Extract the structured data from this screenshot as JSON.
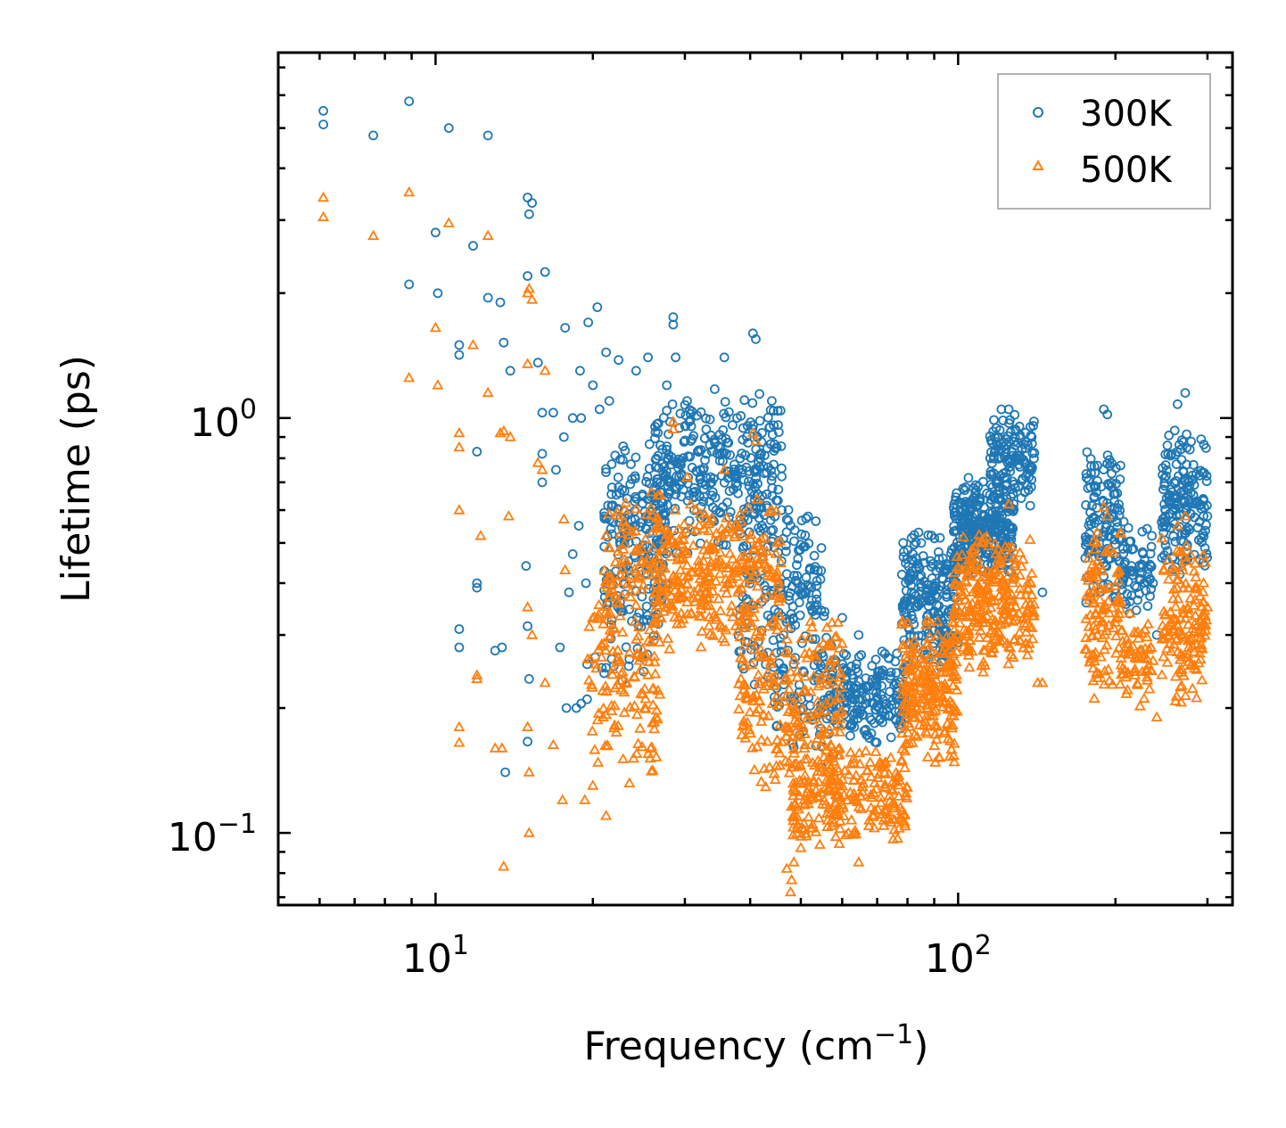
{
  "chart_data": {
    "type": "scatter",
    "xscale": "log",
    "yscale": "log",
    "xlim": [
      5.0,
      335
    ],
    "ylim": [
      0.067,
      7.6
    ],
    "xlabel": "Frequency (cm",
    "xlabel_sup": "−1",
    "xlabel_end": ")",
    "ylabel": "Lifetime (ps)",
    "x_ticks": [
      {
        "value": 10,
        "base": "10",
        "exp": "1"
      },
      {
        "value": 100,
        "base": "10",
        "exp": "2"
      }
    ],
    "y_ticks": [
      {
        "value": 0.1,
        "base": "10",
        "exp": "−1"
      },
      {
        "value": 1,
        "base": "10",
        "exp": "0"
      }
    ],
    "legend_position": "top-right",
    "series": [
      {
        "name": "300K",
        "marker": "circle",
        "color": "#1f77b4",
        "points": [
          [
            6.1,
            5.5
          ],
          [
            6.1,
            5.1
          ],
          [
            7.6,
            4.8
          ],
          [
            8.9,
            5.8
          ],
          [
            10.6,
            5.0
          ],
          [
            12.6,
            4.8
          ],
          [
            15.0,
            3.4
          ],
          [
            15.3,
            3.3
          ],
          [
            15.1,
            3.1
          ],
          [
            10.0,
            2.8
          ],
          [
            11.8,
            2.6
          ],
          [
            8.9,
            2.1
          ],
          [
            10.1,
            2.0
          ],
          [
            12.6,
            1.95
          ],
          [
            15.0,
            2.2
          ],
          [
            16.2,
            2.25
          ],
          [
            13.3,
            1.9
          ],
          [
            11.1,
            1.5
          ],
          [
            11.1,
            1.42
          ],
          [
            13.5,
            1.52
          ],
          [
            15.7,
            1.36
          ],
          [
            13.9,
            1.3
          ],
          [
            17.7,
            1.65
          ],
          [
            18.9,
            1.3
          ],
          [
            20.4,
            1.85
          ],
          [
            19.6,
            1.7
          ],
          [
            21.2,
            1.44
          ],
          [
            22.4,
            1.38
          ],
          [
            20.0,
            1.2
          ],
          [
            21.5,
            1.1
          ],
          [
            20.6,
            1.05
          ],
          [
            16.0,
            1.03
          ],
          [
            16.8,
            1.03
          ],
          [
            12.0,
            0.83
          ],
          [
            18.3,
            1.0
          ],
          [
            19.0,
            1.0
          ],
          [
            17.6,
            0.9
          ],
          [
            16.0,
            0.7
          ],
          [
            17.0,
            0.75
          ],
          [
            16.0,
            0.82
          ],
          [
            18.3,
            0.47
          ],
          [
            18.8,
            0.55
          ],
          [
            18.0,
            0.38
          ],
          [
            19.4,
            0.4
          ],
          [
            14.9,
            0.44
          ],
          [
            12.0,
            0.4
          ],
          [
            12.0,
            0.39
          ],
          [
            11.1,
            0.31
          ],
          [
            11.1,
            0.28
          ],
          [
            13.0,
            0.275
          ],
          [
            13.4,
            0.28
          ],
          [
            15.0,
            0.315
          ],
          [
            15.1,
            0.235
          ],
          [
            15.0,
            0.166
          ],
          [
            13.6,
            0.14
          ],
          [
            17.3,
            0.28
          ],
          [
            17.8,
            0.2
          ],
          [
            18.6,
            0.2
          ],
          [
            19.0,
            0.205
          ],
          [
            19.5,
            0.21
          ],
          [
            20.2,
            0.265
          ],
          [
            19.5,
            0.255
          ],
          [
            20.8,
            0.25
          ],
          [
            21.2,
            0.25
          ],
          [
            28.5,
            1.75
          ],
          [
            28.5,
            1.68
          ],
          [
            28.8,
            1.4
          ],
          [
            35.7,
            1.4
          ],
          [
            40.5,
            1.6
          ],
          [
            41.0,
            1.55
          ],
          [
            30.3,
            1.1
          ],
          [
            44.0,
            1.1
          ],
          [
            27.7,
            1.2
          ],
          [
            25.5,
            1.4
          ],
          [
            24.2,
            1.3
          ],
          [
            45.0,
            0.85
          ],
          [
            46.0,
            0.6
          ],
          [
            47.8,
            0.55
          ],
          [
            49.5,
            0.48
          ],
          [
            52.0,
            0.43
          ],
          [
            60.0,
            0.33
          ],
          [
            64.5,
            0.3
          ],
          [
            84.0,
            0.53
          ],
          [
            85.0,
            0.5
          ],
          [
            121.0,
            1.05
          ],
          [
            125.0,
            1.05
          ],
          [
            145.0,
            0.38
          ],
          [
            190.0,
            1.05
          ],
          [
            193.0,
            1.02
          ],
          [
            272.0,
            1.15
          ],
          [
            263.0,
            1.08
          ],
          [
            236.0,
            0.4
          ],
          [
            240.0,
            0.3
          ],
          [
            295.0,
            0.58
          ],
          [
            300.0,
            0.58
          ]
        ],
        "clusters": [
          {
            "x": [
              21,
              28
            ],
            "y": [
              0.3,
              1.05
            ],
            "n": 160
          },
          {
            "x": [
              26,
              46
            ],
            "y": [
              0.45,
              1.2
            ],
            "n": 330
          },
          {
            "x": [
              21,
              27
            ],
            "y": [
              0.22,
              0.6
            ],
            "n": 60
          },
          {
            "x": [
              38,
              56
            ],
            "y": [
              0.22,
              0.65
            ],
            "n": 170
          },
          {
            "x": [
              44,
              58
            ],
            "y": [
              0.14,
              0.3
            ],
            "n": 60
          },
          {
            "x": [
              55,
              80
            ],
            "y": [
              0.16,
              0.28
            ],
            "n": 200
          },
          {
            "x": [
              78,
              100
            ],
            "y": [
              0.24,
              0.55
            ],
            "n": 220
          },
          {
            "x": [
              98,
              128
            ],
            "y": [
              0.4,
              0.75
            ],
            "n": 300
          },
          {
            "x": [
              115,
              140
            ],
            "y": [
              0.6,
              1.05
            ],
            "n": 130
          },
          {
            "x": [
              175,
              205
            ],
            "y": [
              0.32,
              0.95
            ],
            "n": 130
          },
          {
            "x": [
              205,
              235
            ],
            "y": [
              0.32,
              0.58
            ],
            "n": 70
          },
          {
            "x": [
              245,
              300
            ],
            "y": [
              0.4,
              0.95
            ],
            "n": 170
          }
        ]
      },
      {
        "name": "500K",
        "marker": "triangle",
        "color": "#ff7f0e",
        "points": [
          [
            6.1,
            3.4
          ],
          [
            6.1,
            3.05
          ],
          [
            7.6,
            2.75
          ],
          [
            8.9,
            3.5
          ],
          [
            10.6,
            2.95
          ],
          [
            12.6,
            2.75
          ],
          [
            15.0,
            2.0
          ],
          [
            15.3,
            1.93
          ],
          [
            15.1,
            2.05
          ],
          [
            10.0,
            1.65
          ],
          [
            11.8,
            1.5
          ],
          [
            8.9,
            1.25
          ],
          [
            10.1,
            1.2
          ],
          [
            12.6,
            1.15
          ],
          [
            15.0,
            1.35
          ],
          [
            16.2,
            1.3
          ],
          [
            13.3,
            0.92
          ],
          [
            11.1,
            0.92
          ],
          [
            11.1,
            0.85
          ],
          [
            13.5,
            0.93
          ],
          [
            13.9,
            0.9
          ],
          [
            15.7,
            0.78
          ],
          [
            16.0,
            0.75
          ],
          [
            12.2,
            0.52
          ],
          [
            13.8,
            0.58
          ],
          [
            17.6,
            0.57
          ],
          [
            17.7,
            0.43
          ],
          [
            15.0,
            0.35
          ],
          [
            15.3,
            0.3
          ],
          [
            16.2,
            0.23
          ],
          [
            11.1,
            0.18
          ],
          [
            11.1,
            0.165
          ],
          [
            13.0,
            0.16
          ],
          [
            13.4,
            0.16
          ],
          [
            15.0,
            0.18
          ],
          [
            15.1,
            0.14
          ],
          [
            16.8,
            0.163
          ],
          [
            17.5,
            0.12
          ],
          [
            12.0,
            0.24
          ],
          [
            12.0,
            0.235
          ],
          [
            15.1,
            0.1
          ],
          [
            13.5,
            0.083
          ],
          [
            11.1,
            0.6
          ],
          [
            19.3,
            0.12
          ],
          [
            20.0,
            0.13
          ],
          [
            21.2,
            0.11
          ],
          [
            28.5,
            0.98
          ],
          [
            28.5,
            0.94
          ],
          [
            40.5,
            0.92
          ],
          [
            41.0,
            0.88
          ],
          [
            30.3,
            0.72
          ],
          [
            44.0,
            0.6
          ],
          [
            45.0,
            0.5
          ],
          [
            35.7,
            0.75
          ],
          [
            47.8,
            0.072
          ],
          [
            48.0,
            0.077
          ],
          [
            47.0,
            0.082
          ],
          [
            48.5,
            0.085
          ],
          [
            50.0,
            0.092
          ],
          [
            64.5,
            0.085
          ],
          [
            125.0,
            0.62
          ],
          [
            145.0,
            0.23
          ],
          [
            142.0,
            0.23
          ],
          [
            190.0,
            0.61
          ],
          [
            193.0,
            0.58
          ],
          [
            272.0,
            0.58
          ],
          [
            263.0,
            0.55
          ],
          [
            236.0,
            0.26
          ],
          [
            240.0,
            0.19
          ],
          [
            295.0,
            0.36
          ],
          [
            300.0,
            0.35
          ]
        ],
        "clusters": [
          {
            "x": [
              19.5,
              27
            ],
            "y": [
              0.13,
              0.45
            ],
            "n": 140
          },
          {
            "x": [
              21,
              27
            ],
            "y": [
              0.3,
              0.75
            ],
            "n": 80
          },
          {
            "x": [
              26,
              46
            ],
            "y": [
              0.26,
              0.65
            ],
            "n": 320
          },
          {
            "x": [
              38,
              60
            ],
            "y": [
              0.12,
              0.35
            ],
            "n": 220
          },
          {
            "x": [
              48,
              80
            ],
            "y": [
              0.09,
              0.17
            ],
            "n": 260
          },
          {
            "x": [
              78,
              100
            ],
            "y": [
              0.14,
              0.35
            ],
            "n": 220
          },
          {
            "x": [
              98,
              140
            ],
            "y": [
              0.23,
              0.55
            ],
            "n": 280
          },
          {
            "x": [
              175,
              205
            ],
            "y": [
              0.2,
              0.58
            ],
            "n": 110
          },
          {
            "x": [
              205,
              235
            ],
            "y": [
              0.19,
              0.36
            ],
            "n": 60
          },
          {
            "x": [
              245,
              300
            ],
            "y": [
              0.2,
              0.55
            ],
            "n": 150
          }
        ]
      }
    ]
  }
}
